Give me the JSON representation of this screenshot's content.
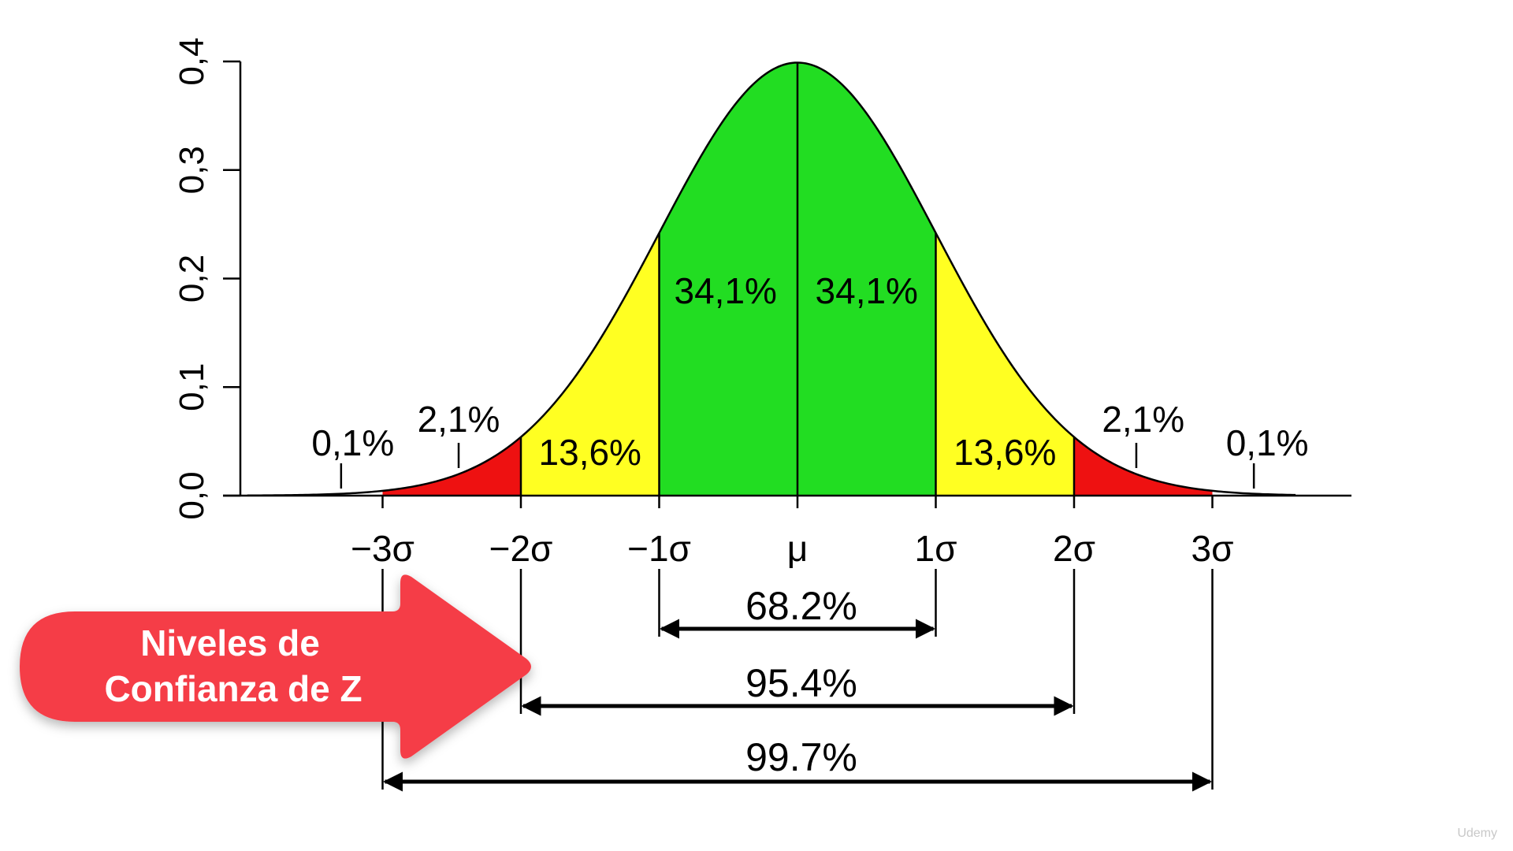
{
  "chart_data": {
    "type": "area",
    "distribution": "normal",
    "x_ticks": [
      {
        "sigma": -3,
        "label": "−3σ"
      },
      {
        "sigma": -2,
        "label": "−2σ"
      },
      {
        "sigma": -1,
        "label": "−1σ"
      },
      {
        "sigma": 0,
        "label": "μ"
      },
      {
        "sigma": 1,
        "label": "1σ"
      },
      {
        "sigma": 2,
        "label": "2σ"
      },
      {
        "sigma": 3,
        "label": "3σ"
      }
    ],
    "xlim": [
      -4,
      4
    ],
    "ylim": [
      0,
      0.4
    ],
    "y_ticks": [
      {
        "value": 0.0,
        "label": "0,0"
      },
      {
        "value": 0.1,
        "label": "0,1"
      },
      {
        "value": 0.2,
        "label": "0,2"
      },
      {
        "value": 0.3,
        "label": "0,3"
      },
      {
        "value": 0.4,
        "label": "0,4"
      }
    ],
    "segments": [
      {
        "from": -3,
        "to": -2,
        "percent": "2,1%",
        "color": "#ee1111"
      },
      {
        "from": -2,
        "to": -1,
        "percent": "13,6%",
        "color": "#ffff22"
      },
      {
        "from": -1,
        "to": 0,
        "percent": "34,1%",
        "color": "#22dd22"
      },
      {
        "from": 0,
        "to": 1,
        "percent": "34,1%",
        "color": "#22dd22"
      },
      {
        "from": 1,
        "to": 2,
        "percent": "13,6%",
        "color": "#ffff22"
      },
      {
        "from": 2,
        "to": 3,
        "percent": "2,1%",
        "color": "#ee1111"
      }
    ],
    "tails": [
      {
        "side": "left",
        "percent": "0,1%",
        "marker_sigma": -3.3
      },
      {
        "side": "right",
        "percent": "0,1%",
        "marker_sigma": 3.3
      }
    ],
    "ranges": [
      {
        "sigma": 1,
        "label": "68.2%"
      },
      {
        "sigma": 2,
        "label": "95.4%"
      },
      {
        "sigma": 3,
        "label": "99.7%"
      }
    ]
  },
  "callout": {
    "line1": "Niveles de",
    "line2": "Confianza de Z",
    "color": "#f53d47"
  },
  "watermark": "Udemy"
}
